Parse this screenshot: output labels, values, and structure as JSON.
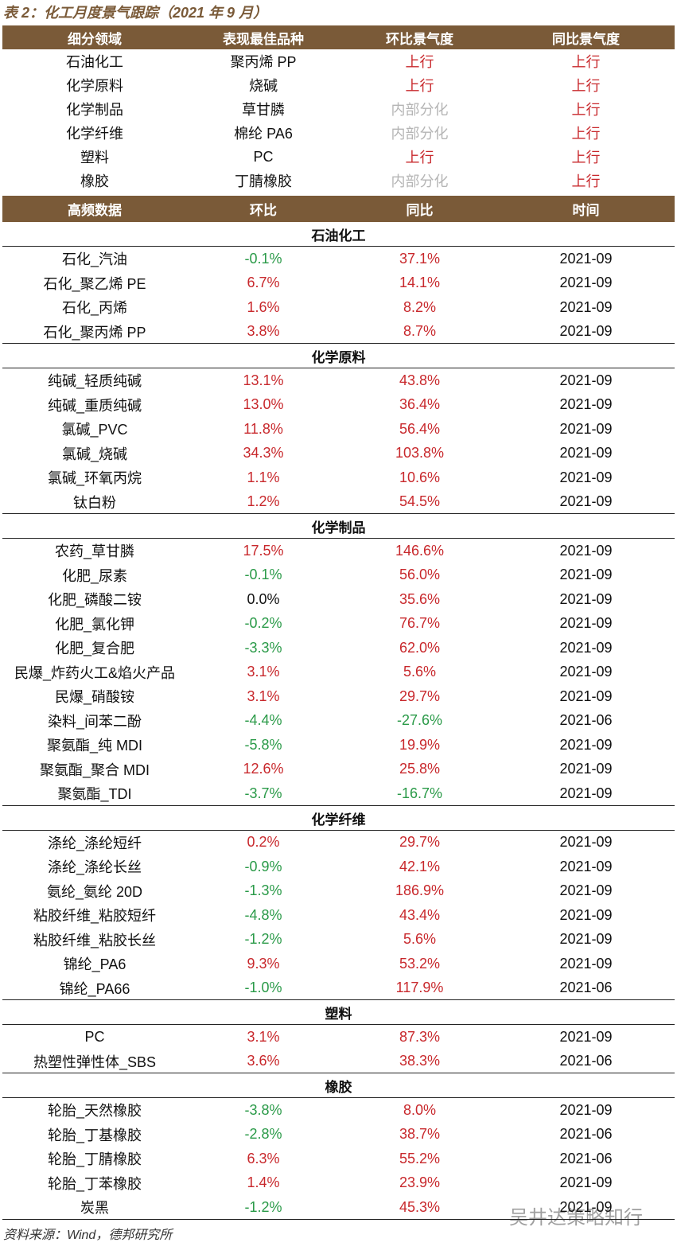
{
  "title": "表 2：化工月度景气跟踪（2021 年 9 月）",
  "table1": {
    "header": [
      "细分领域",
      "表现最佳品种",
      "环比景气度",
      "同比景气度"
    ],
    "rows": [
      [
        "石油化工",
        "聚丙烯 PP",
        "上行",
        "上行"
      ],
      [
        "化学原料",
        "烧碱",
        "上行",
        "上行"
      ],
      [
        "化学制品",
        "草甘膦",
        "内部分化",
        "上行"
      ],
      [
        "化学纤维",
        "棉纶 PA6",
        "内部分化",
        "上行"
      ],
      [
        "塑料",
        "PC",
        "上行",
        "上行"
      ],
      [
        "橡胶",
        "丁腈橡胶",
        "内部分化",
        "上行"
      ]
    ]
  },
  "table2": {
    "header": [
      "高频数据",
      "环比",
      "同比",
      "时间"
    ],
    "sections": [
      {
        "name": "石油化工",
        "rows": [
          [
            "石化_汽油",
            "-0.1%",
            "37.1%",
            "2021-09"
          ],
          [
            "石化_聚乙烯 PE",
            "6.7%",
            "14.1%",
            "2021-09"
          ],
          [
            "石化_丙烯",
            "1.6%",
            "8.2%",
            "2021-09"
          ],
          [
            "石化_聚丙烯 PP",
            "3.8%",
            "8.7%",
            "2021-09"
          ]
        ]
      },
      {
        "name": "化学原料",
        "rows": [
          [
            "纯碱_轻质纯碱",
            "13.1%",
            "43.8%",
            "2021-09"
          ],
          [
            "纯碱_重质纯碱",
            "13.0%",
            "36.4%",
            "2021-09"
          ],
          [
            "氯碱_PVC",
            "11.8%",
            "56.4%",
            "2021-09"
          ],
          [
            "氯碱_烧碱",
            "34.3%",
            "103.8%",
            "2021-09"
          ],
          [
            "氯碱_环氧丙烷",
            "1.1%",
            "10.6%",
            "2021-09"
          ],
          [
            "钛白粉",
            "1.2%",
            "54.5%",
            "2021-09"
          ]
        ]
      },
      {
        "name": "化学制品",
        "rows": [
          [
            "农药_草甘膦",
            "17.5%",
            "146.6%",
            "2021-09"
          ],
          [
            "化肥_尿素",
            "-0.1%",
            "56.0%",
            "2021-09"
          ],
          [
            "化肥_磷酸二铵",
            "0.0%",
            "35.6%",
            "2021-09"
          ],
          [
            "化肥_氯化钾",
            "-0.2%",
            "76.7%",
            "2021-09"
          ],
          [
            "化肥_复合肥",
            "-3.3%",
            "62.0%",
            "2021-09"
          ],
          [
            "民爆_炸药火工&焰火产品",
            "3.1%",
            "5.6%",
            "2021-09"
          ],
          [
            "民爆_硝酸铵",
            "3.1%",
            "29.7%",
            "2021-09"
          ],
          [
            "染料_间苯二酚",
            "-4.4%",
            "-27.6%",
            "2021-06"
          ],
          [
            "聚氨酯_纯 MDI",
            "-5.8%",
            "19.9%",
            "2021-09"
          ],
          [
            "聚氨酯_聚合 MDI",
            "12.6%",
            "25.8%",
            "2021-09"
          ],
          [
            "聚氨酯_TDI",
            "-3.7%",
            "-16.7%",
            "2021-09"
          ]
        ]
      },
      {
        "name": "化学纤维",
        "rows": [
          [
            "涤纶_涤纶短纤",
            "0.2%",
            "29.7%",
            "2021-09"
          ],
          [
            "涤纶_涤纶长丝",
            "-0.9%",
            "42.1%",
            "2021-09"
          ],
          [
            "氨纶_氨纶 20D",
            "-1.3%",
            "186.9%",
            "2021-09"
          ],
          [
            "粘胶纤维_粘胶短纤",
            "-4.8%",
            "43.4%",
            "2021-09"
          ],
          [
            "粘胶纤维_粘胶长丝",
            "-1.2%",
            "5.6%",
            "2021-09"
          ],
          [
            "锦纶_PA6",
            "9.3%",
            "53.2%",
            "2021-09"
          ],
          [
            "锦纶_PA66",
            "-1.0%",
            "117.9%",
            "2021-06"
          ]
        ]
      },
      {
        "name": "塑料",
        "rows": [
          [
            "PC",
            "3.1%",
            "87.3%",
            "2021-09"
          ],
          [
            "热塑性弹性体_SBS",
            "3.6%",
            "38.3%",
            "2021-06"
          ]
        ]
      },
      {
        "name": "橡胶",
        "rows": [
          [
            "轮胎_天然橡胶",
            "-3.8%",
            "8.0%",
            "2021-09"
          ],
          [
            "轮胎_丁基橡胶",
            "-2.8%",
            "38.7%",
            "2021-06"
          ],
          [
            "轮胎_丁腈橡胶",
            "6.3%",
            "55.2%",
            "2021-06"
          ],
          [
            "轮胎_丁苯橡胶",
            "1.4%",
            "23.9%",
            "2021-09"
          ],
          [
            "炭黑",
            "-1.2%",
            "45.3%",
            "2021-09"
          ]
        ]
      }
    ]
  },
  "source": "资料来源：Wind，德邦研究所",
  "watermark": "吴井达策略知行"
}
